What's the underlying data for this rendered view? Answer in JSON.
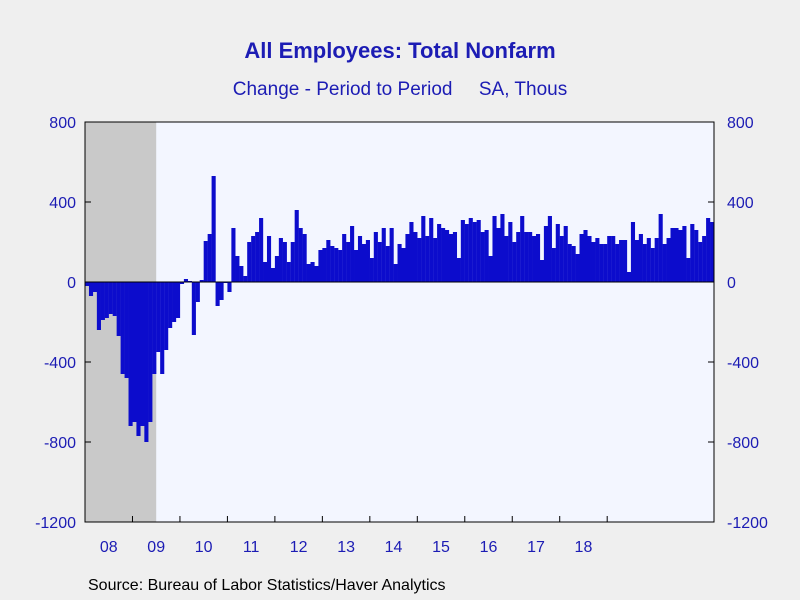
{
  "source_note": "Source:  Bureau of Labor Statistics/Haver Analytics",
  "chart_data": {
    "type": "bar",
    "title": "All Employees: Total Nonfarm",
    "subtitle": "Change - Period to Period     SA, Thous",
    "ylim": [
      -1200,
      800
    ],
    "yticks": [
      800,
      400,
      0,
      -400,
      -800,
      -1200
    ],
    "ytick_labels": [
      "800",
      "400",
      "0",
      "-400",
      "-800",
      "-1200"
    ],
    "xtick_labels": [
      "08",
      "09",
      "10",
      "11",
      "12",
      "13",
      "14",
      "15",
      "16",
      "17",
      "18"
    ],
    "x_start": "2008-01",
    "x_frequency": "monthly",
    "recession": {
      "start": "2008-01",
      "end": "2009-06"
    },
    "grid": false,
    "colors": {
      "bars": "#0c0ccc",
      "recession": "#c9c9c9",
      "plot_bg": "#f3f6ff",
      "text": "#1c1cb4"
    },
    "series": [
      {
        "values": [
          -20,
          -70,
          -50,
          -240,
          -190,
          -180,
          -160,
          -170,
          -270,
          -460,
          -480,
          -720,
          -700,
          -770,
          -720,
          -800,
          -700,
          -460,
          -350,
          -460,
          -340,
          -230,
          -200,
          -180,
          -10,
          15,
          5,
          -265,
          -100,
          10,
          205,
          240,
          530,
          -120,
          -90,
          -5,
          -50,
          270,
          130,
          80,
          30,
          200,
          230,
          250,
          320,
          100,
          230,
          70,
          130,
          220,
          200,
          100,
          200,
          360,
          270,
          240,
          90,
          100,
          80,
          160,
          170,
          210,
          180,
          170,
          160,
          240,
          200,
          280,
          160,
          230,
          190,
          210,
          120,
          250,
          200,
          270,
          180,
          270,
          90,
          190,
          170,
          240,
          300,
          250,
          220,
          330,
          230,
          320,
          220,
          290,
          270,
          260,
          240,
          250,
          120,
          310,
          290,
          320,
          300,
          310,
          250,
          260,
          130,
          330,
          270,
          340,
          230,
          300,
          200,
          250,
          330,
          250,
          250,
          230,
          240,
          110,
          280,
          330,
          170,
          290,
          230,
          280,
          190,
          180,
          140,
          240,
          260,
          230,
          200,
          220,
          190,
          190,
          230,
          230,
          190,
          210,
          210,
          50,
          300,
          210,
          240,
          190,
          220,
          170,
          220,
          340,
          190,
          220,
          270,
          270,
          260,
          280,
          120,
          290,
          260,
          200,
          230,
          320,
          300
        ]
      }
    ]
  }
}
